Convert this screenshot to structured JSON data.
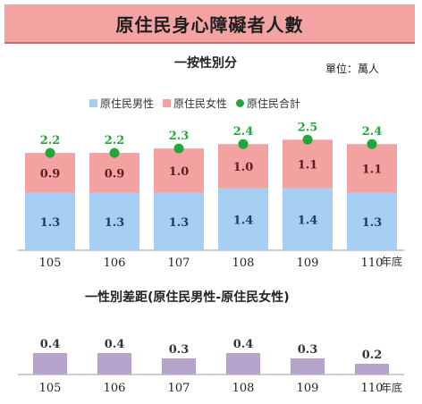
{
  "title": "原住民身心障礙者人數",
  "unit": "單位：萬人",
  "colors": {
    "male": "#a6cff3",
    "female": "#f3a1a1",
    "total": "#22a83a",
    "diff": "#b6a3cc",
    "title_bg": "#f4a3a3"
  },
  "chart_data": [
    {
      "type": "bar",
      "subtitle": "一按性別分",
      "categories": [
        "105",
        "106",
        "107",
        "108",
        "109",
        "110"
      ],
      "xlabel": "年底",
      "series": [
        {
          "name": "原住民男性",
          "values": [
            1.3,
            1.3,
            1.3,
            1.4,
            1.4,
            1.3
          ]
        },
        {
          "name": "原住民女性",
          "values": [
            0.9,
            0.9,
            1.0,
            1.0,
            1.1,
            1.1
          ]
        },
        {
          "name": "原住民合計",
          "values": [
            2.2,
            2.2,
            2.3,
            2.4,
            2.5,
            2.4
          ]
        }
      ],
      "stacked": true,
      "legend_position": "top"
    },
    {
      "type": "bar",
      "subtitle": "一性別差距(原住民男性-原住民女性)",
      "categories": [
        "105",
        "106",
        "107",
        "108",
        "109",
        "110"
      ],
      "xlabel": "年底",
      "values": [
        0.4,
        0.4,
        0.3,
        0.4,
        0.3,
        0.2
      ]
    }
  ]
}
